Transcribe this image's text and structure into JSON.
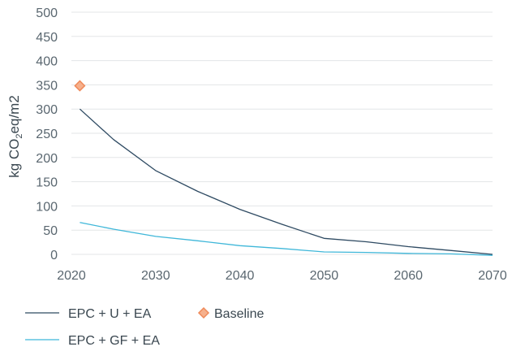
{
  "chart_data": {
    "type": "line",
    "xlabel": "",
    "ylabel_parts": {
      "before": "kg CO",
      "sub": "2",
      "after": "eq/m2"
    },
    "xlim": [
      2020,
      2070
    ],
    "ylim": [
      0,
      500
    ],
    "x_ticks": [
      "2020",
      "2030",
      "2040",
      "2050",
      "2060",
      "2070"
    ],
    "y_ticks": [
      "0",
      "50",
      "100",
      "150",
      "200",
      "250",
      "300",
      "350",
      "400",
      "450",
      "500"
    ],
    "grid": "horizontal",
    "legend_position": "bottom",
    "series": [
      {
        "name": "EPC + U + EA",
        "color": "#2e4a62",
        "x": [
          2021,
          2025,
          2030,
          2035,
          2040,
          2045,
          2050,
          2055,
          2060,
          2065,
          2070
        ],
        "y": [
          300,
          237,
          173,
          130,
          93,
          62,
          33,
          26,
          16,
          8,
          0
        ]
      },
      {
        "name": "EPC + GF + EA",
        "color": "#3fb7d9",
        "x": [
          2021,
          2025,
          2030,
          2035,
          2040,
          2045,
          2050,
          2055,
          2060,
          2065,
          2070
        ],
        "y": [
          66,
          52,
          37,
          28,
          18,
          12,
          5,
          4,
          2,
          1,
          -2
        ]
      }
    ],
    "points": [
      {
        "name": "Baseline",
        "color": "#ef8a5a",
        "x": 2021,
        "y": 348,
        "marker": "diamond"
      }
    ]
  }
}
